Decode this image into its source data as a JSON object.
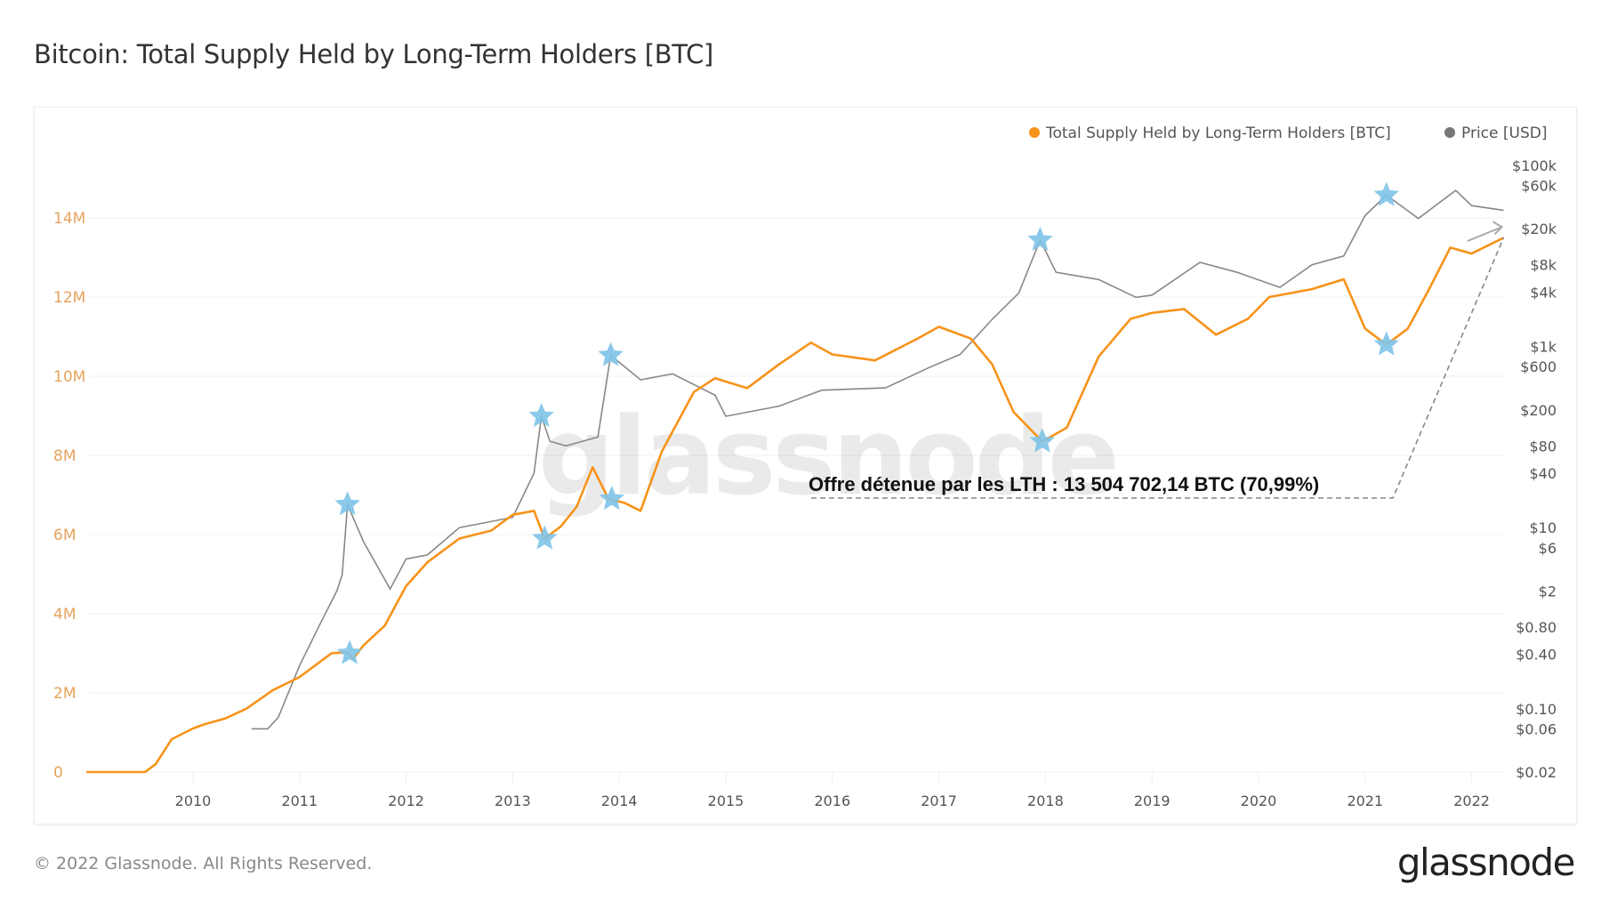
{
  "title": "Bitcoin: Total Supply Held by Long-Term Holders [BTC]",
  "footer": {
    "copyright": "© 2022 Glassnode. All Rights Reserved.",
    "logo": "glassnode"
  },
  "watermark": "glassnode",
  "chart_data": {
    "type": "line",
    "title": "Bitcoin: Total Supply Held by Long-Term Holders [BTC]",
    "legend_position": "top-right",
    "grid": true,
    "x_ticks": [
      "2010",
      "2011",
      "2012",
      "2013",
      "2014",
      "2015",
      "2016",
      "2017",
      "2018",
      "2019",
      "2020",
      "2021",
      "2022"
    ],
    "xlim": [
      2009.0,
      2022.3
    ],
    "y_left": {
      "ticks": [
        0,
        2,
        4,
        6,
        8,
        10,
        12,
        14
      ],
      "tick_labels": [
        "0",
        "2M",
        "4M",
        "6M",
        "8M",
        "10M",
        "12M",
        "14M"
      ],
      "range_millions": [
        0,
        15.3
      ]
    },
    "y_right": {
      "scale": "log",
      "tick_labels": [
        "$100k",
        "$60k",
        "$20k",
        "$8k",
        "$4k",
        "$1k",
        "$600",
        "$200",
        "$80",
        "$40",
        "$10",
        "$6",
        "$2",
        "$0.80",
        "$0.40",
        "$0.10",
        "$0.06",
        "$0.02"
      ],
      "ticks": [
        100000,
        60000,
        20000,
        8000,
        4000,
        1000,
        600,
        200,
        80,
        40,
        10,
        6,
        2,
        0.8,
        0.4,
        0.1,
        0.06,
        0.02
      ],
      "range": [
        0.02,
        100000
      ]
    },
    "series": [
      {
        "name": "Total Supply Held by Long-Term Holders [BTC]",
        "axis": "left",
        "color": "#f7931a",
        "unit": "million BTC",
        "points": [
          [
            2009.0,
            0
          ],
          [
            2009.55,
            0
          ],
          [
            2009.65,
            0.2
          ],
          [
            2009.8,
            0.83
          ],
          [
            2010.0,
            1.1
          ],
          [
            2010.1,
            1.2
          ],
          [
            2010.3,
            1.35
          ],
          [
            2010.5,
            1.6
          ],
          [
            2010.75,
            2.07
          ],
          [
            2011.0,
            2.4
          ],
          [
            2011.3,
            3.0
          ],
          [
            2011.45,
            3.03
          ],
          [
            2011.5,
            2.85
          ],
          [
            2011.6,
            3.2
          ],
          [
            2011.8,
            3.7
          ],
          [
            2012.0,
            4.7
          ],
          [
            2012.2,
            5.3
          ],
          [
            2012.5,
            5.9
          ],
          [
            2012.8,
            6.1
          ],
          [
            2013.0,
            6.5
          ],
          [
            2013.2,
            6.6
          ],
          [
            2013.3,
            5.9
          ],
          [
            2013.45,
            6.2
          ],
          [
            2013.6,
            6.7
          ],
          [
            2013.75,
            7.7
          ],
          [
            2013.9,
            6.9
          ],
          [
            2014.05,
            6.8
          ],
          [
            2014.2,
            6.6
          ],
          [
            2014.4,
            8.1
          ],
          [
            2014.7,
            9.6
          ],
          [
            2014.9,
            9.95
          ],
          [
            2015.2,
            9.7
          ],
          [
            2015.5,
            10.3
          ],
          [
            2015.8,
            10.85
          ],
          [
            2016.0,
            10.55
          ],
          [
            2016.4,
            10.4
          ],
          [
            2016.8,
            10.95
          ],
          [
            2017.0,
            11.25
          ],
          [
            2017.3,
            10.95
          ],
          [
            2017.5,
            10.3
          ],
          [
            2017.7,
            9.1
          ],
          [
            2017.97,
            8.35
          ],
          [
            2018.2,
            8.7
          ],
          [
            2018.5,
            10.5
          ],
          [
            2018.8,
            11.45
          ],
          [
            2019.0,
            11.6
          ],
          [
            2019.3,
            11.7
          ],
          [
            2019.6,
            11.05
          ],
          [
            2019.9,
            11.45
          ],
          [
            2020.1,
            12.0
          ],
          [
            2020.5,
            12.2
          ],
          [
            2020.8,
            12.45
          ],
          [
            2021.0,
            11.2
          ],
          [
            2021.2,
            10.8
          ],
          [
            2021.4,
            11.2
          ],
          [
            2021.6,
            12.2
          ],
          [
            2021.8,
            13.25
          ],
          [
            2022.0,
            13.1
          ],
          [
            2022.3,
            13.5
          ]
        ]
      },
      {
        "name": "Price [USD]",
        "axis": "right",
        "color": "#888888",
        "unit": "USD",
        "points": [
          [
            2010.55,
            0.06
          ],
          [
            2010.7,
            0.06
          ],
          [
            2010.8,
            0.08
          ],
          [
            2011.0,
            0.3
          ],
          [
            2011.2,
            0.9
          ],
          [
            2011.35,
            2
          ],
          [
            2011.4,
            3
          ],
          [
            2011.45,
            18
          ],
          [
            2011.6,
            7
          ],
          [
            2011.85,
            2.1
          ],
          [
            2012.0,
            4.5
          ],
          [
            2012.2,
            5
          ],
          [
            2012.5,
            10
          ],
          [
            2013.0,
            13
          ],
          [
            2013.2,
            40
          ],
          [
            2013.27,
            170
          ],
          [
            2013.35,
            90
          ],
          [
            2013.5,
            80
          ],
          [
            2013.8,
            100
          ],
          [
            2013.92,
            800
          ],
          [
            2014.2,
            430
          ],
          [
            2014.5,
            500
          ],
          [
            2014.9,
            290
          ],
          [
            2015.0,
            170
          ],
          [
            2015.5,
            220
          ],
          [
            2015.9,
            330
          ],
          [
            2016.5,
            350
          ],
          [
            2016.9,
            580
          ],
          [
            2017.2,
            820
          ],
          [
            2017.5,
            2000
          ],
          [
            2017.75,
            3900
          ],
          [
            2017.95,
            15000
          ],
          [
            2018.1,
            6600
          ],
          [
            2018.5,
            5500
          ],
          [
            2018.85,
            3500
          ],
          [
            2019.0,
            3700
          ],
          [
            2019.45,
            8500
          ],
          [
            2019.8,
            6600
          ],
          [
            2020.2,
            4500
          ],
          [
            2020.5,
            8000
          ],
          [
            2020.8,
            10000
          ],
          [
            2021.0,
            28000
          ],
          [
            2021.2,
            47000
          ],
          [
            2021.5,
            26000
          ],
          [
            2021.85,
            53000
          ],
          [
            2022.0,
            36000
          ],
          [
            2022.3,
            32000
          ]
        ]
      }
    ],
    "markers": {
      "shape": "star",
      "color": "#7ec3e8",
      "points": [
        {
          "series": "Price [USD]",
          "x": 2011.45,
          "y": 18
        },
        {
          "series": "Total Supply Held by Long-Term Holders [BTC]",
          "x": 2011.47,
          "y": 3.0
        },
        {
          "series": "Price [USD]",
          "x": 2013.27,
          "y": 170
        },
        {
          "series": "Total Supply Held by Long-Term Holders [BTC]",
          "x": 2013.3,
          "y": 5.9
        },
        {
          "series": "Price [USD]",
          "x": 2013.92,
          "y": 800
        },
        {
          "series": "Total Supply Held by Long-Term Holders [BTC]",
          "x": 2013.93,
          "y": 6.9
        },
        {
          "series": "Price [USD]",
          "x": 2017.95,
          "y": 15000
        },
        {
          "series": "Total Supply Held by Long-Term Holders [BTC]",
          "x": 2017.97,
          "y": 8.35
        },
        {
          "series": "Price [USD]",
          "x": 2021.2,
          "y": 47000
        },
        {
          "series": "Total Supply Held by Long-Term Holders [BTC]",
          "x": 2021.2,
          "y": 10.8
        }
      ]
    },
    "annotation": {
      "text": "Offre détenue par les LTH : 13 504 702,14 BTC (70,99%)",
      "points_to": [
        2022.3,
        13.5
      ]
    }
  }
}
